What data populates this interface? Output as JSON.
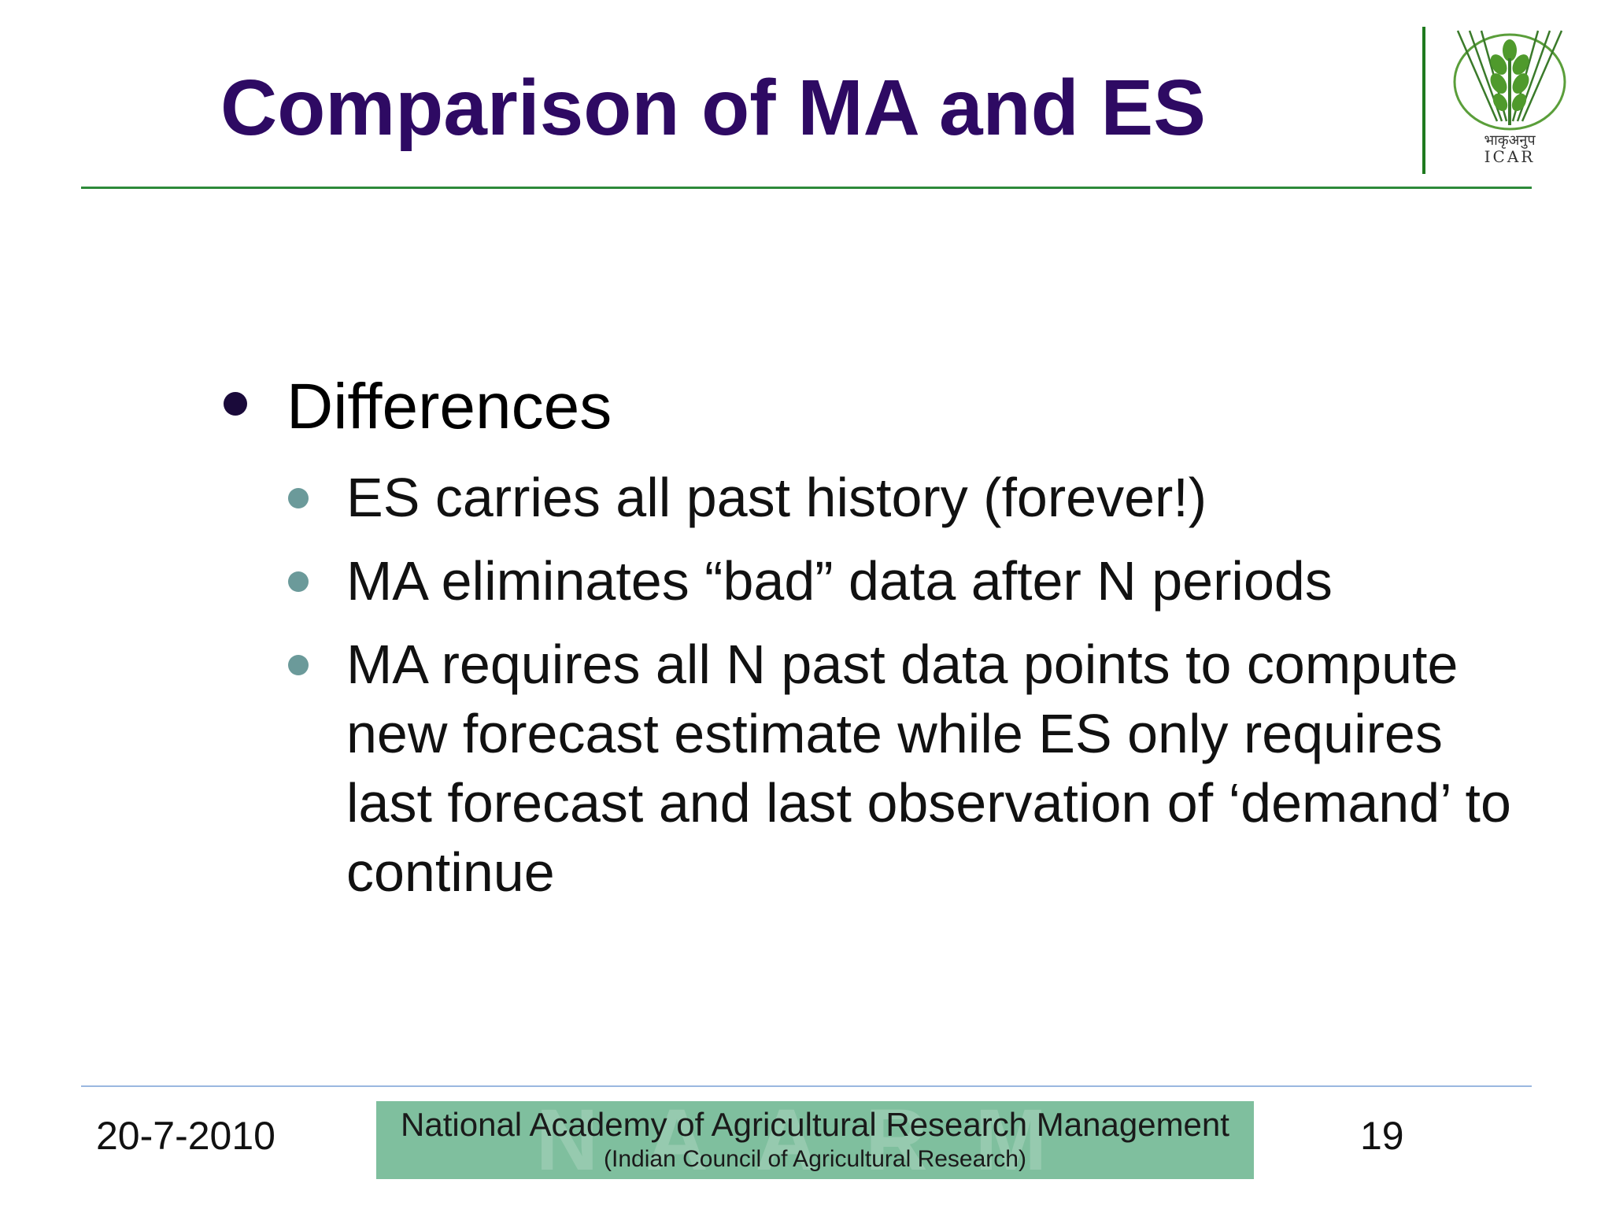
{
  "slide": {
    "title": "Comparison of MA and ES"
  },
  "logo": {
    "hindi_text": "भाकृअनुप",
    "text": "ICAR",
    "icon": "wheat-logo-icon"
  },
  "content": {
    "heading": "Differences",
    "bullets": [
      "ES carries all past history (forever!)",
      "MA eliminates “bad” data after N periods",
      "MA requires all N past data points to compute new forecast estimate while ES only requires last forecast and last observation of ‘demand’ to continue"
    ]
  },
  "footer": {
    "date": "20-7-2010",
    "banner_line1": "National Academy of Agricultural Research Management",
    "banner_line2": "(Indian Council of Agricultural Research)",
    "page_number": "19"
  },
  "colors": {
    "title": "#2e0a63",
    "accent_green": "#2d8a3a",
    "sub_bullet": "#6b9a9a",
    "banner": "#7fbf9e",
    "footer_rule": "#9ab7e0"
  }
}
